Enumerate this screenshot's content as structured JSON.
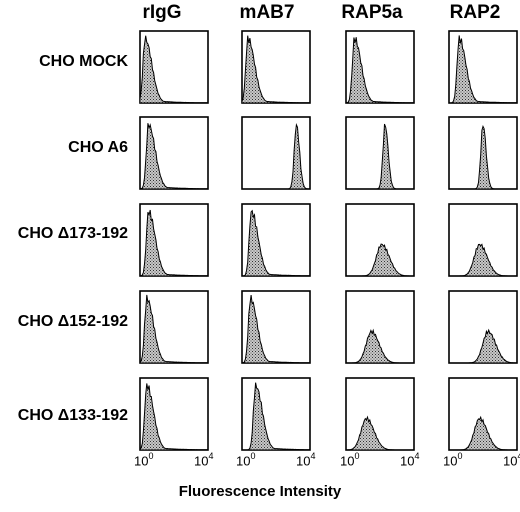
{
  "chart_data": {
    "type": "histogram-grid",
    "columns": [
      "rIgG",
      "mAB7",
      "RAP5a",
      "RAP2"
    ],
    "rows": [
      "CHO MOCK",
      "CHO A6",
      "CHO Δ173-192",
      "CHO Δ152-192",
      "CHO Δ133-192"
    ],
    "x_axis": {
      "scale": "log",
      "min": 1,
      "max": 10000,
      "tick_min_label": "10",
      "tick_min_exp": "0",
      "tick_max_label": "10",
      "tick_max_exp": "4"
    },
    "xlabel": "Fluorescence Intensity",
    "peak_positions_log10": [
      [
        0.3,
        0.35,
        0.5,
        0.6
      ],
      [
        0.5,
        3.2,
        2.3,
        2.0
      ],
      [
        0.5,
        0.55,
        2.1,
        1.8
      ],
      [
        0.4,
        0.5,
        1.5,
        2.3
      ],
      [
        0.4,
        0.8,
        1.2,
        1.8
      ]
    ],
    "fill_color": "#9a9a9a"
  }
}
